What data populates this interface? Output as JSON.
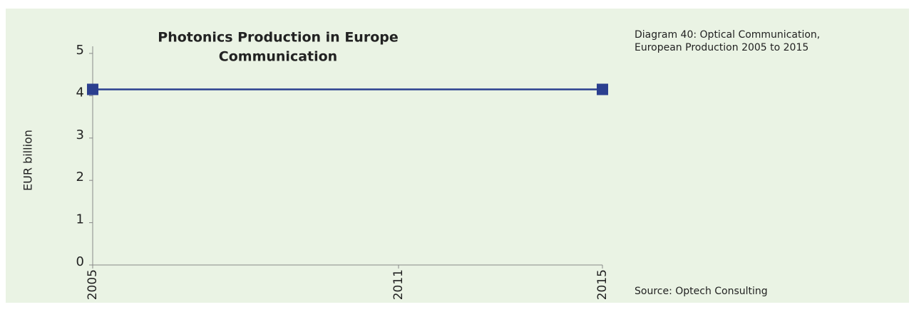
{
  "chart_data": {
    "type": "line",
    "title": [
      "Photonics Production in Europe",
      "Communication"
    ],
    "y_label": "EUR billion",
    "caption": [
      "Diagram 40: Optical Communication,",
      "European Production 2005 to 2015"
    ],
    "source": "Source: Optech Consulting",
    "x": [
      2005,
      2015
    ],
    "xlim": [
      2005,
      2015
    ],
    "xticks": [
      2005,
      2011,
      2015
    ],
    "series": [
      {
        "name": "Communication",
        "color": "#2b3f8f",
        "values": [
          4.15,
          4.15
        ]
      }
    ],
    "ylim": [
      0,
      5
    ],
    "yticks": [
      0,
      1,
      2,
      3,
      4,
      5
    ]
  }
}
